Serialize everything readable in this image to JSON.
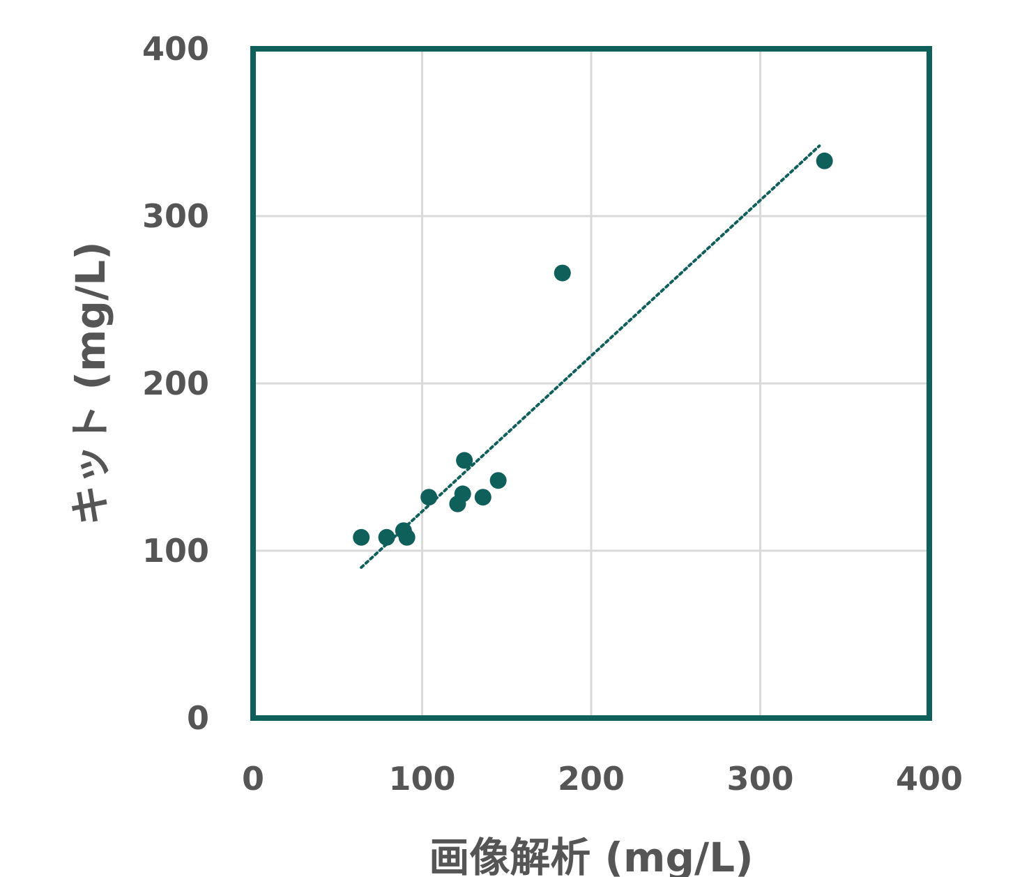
{
  "chart_data": {
    "type": "scatter",
    "xlabel": "画像解析 (mg/L)",
    "ylabel": "キット (mg/L)",
    "xlim": [
      0,
      400
    ],
    "ylim": [
      0,
      400
    ],
    "xticks": [
      "0",
      "100",
      "200",
      "300",
      "400"
    ],
    "yticks": [
      "0",
      "100",
      "200",
      "300",
      "400"
    ],
    "grid": true,
    "series": [
      {
        "points": [
          {
            "x": 64,
            "y": 108
          },
          {
            "x": 79,
            "y": 108
          },
          {
            "x": 89,
            "y": 112
          },
          {
            "x": 91,
            "y": 108
          },
          {
            "x": 104,
            "y": 132
          },
          {
            "x": 121,
            "y": 128
          },
          {
            "x": 124,
            "y": 134
          },
          {
            "x": 125,
            "y": 154
          },
          {
            "x": 136,
            "y": 132
          },
          {
            "x": 145,
            "y": 142
          },
          {
            "x": 183,
            "y": 266
          },
          {
            "x": 338,
            "y": 333
          }
        ]
      }
    ],
    "trendline": {
      "style": "dotted",
      "x": [
        64,
        335
      ],
      "y": [
        90,
        342
      ]
    },
    "colors": {
      "marker": "#0f5f5a",
      "frame": "#0f5f5a",
      "grid": "#d9d9d9",
      "text": "#555555"
    }
  }
}
